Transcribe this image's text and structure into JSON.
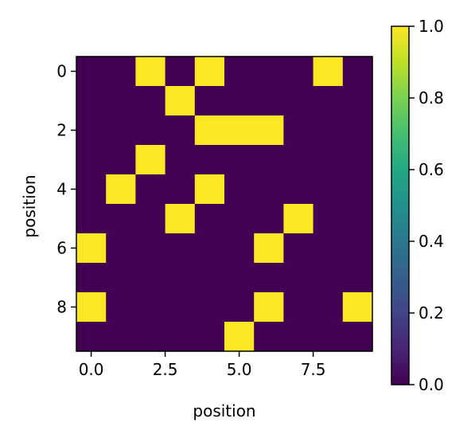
{
  "chart_data": {
    "type": "heatmap",
    "title": "",
    "xlabel": "position",
    "ylabel": "position",
    "x_ticks": [
      "0.0",
      "2.5",
      "5.0",
      "7.5"
    ],
    "y_ticks": [
      "0",
      "2",
      "4",
      "6",
      "8"
    ],
    "colorbar": {
      "ticks": [
        "0.0",
        "0.2",
        "0.4",
        "0.6",
        "0.8",
        "1.0"
      ],
      "range": [
        0.0,
        1.0
      ],
      "colormap": "viridis"
    },
    "colors": {
      "low": "#440154",
      "high": "#fde725"
    },
    "matrix": [
      [
        0,
        0,
        1,
        0,
        1,
        0,
        0,
        0,
        1,
        0
      ],
      [
        0,
        0,
        0,
        1,
        0,
        0,
        0,
        0,
        0,
        0
      ],
      [
        0,
        0,
        0,
        0,
        1,
        1,
        1,
        0,
        0,
        0
      ],
      [
        0,
        0,
        1,
        0,
        0,
        0,
        0,
        0,
        0,
        0
      ],
      [
        0,
        1,
        0,
        0,
        1,
        0,
        0,
        0,
        0,
        0
      ],
      [
        0,
        0,
        0,
        1,
        0,
        0,
        0,
        1,
        0,
        0
      ],
      [
        1,
        0,
        0,
        0,
        0,
        0,
        1,
        0,
        0,
        0
      ],
      [
        0,
        0,
        0,
        0,
        0,
        0,
        0,
        0,
        0,
        0
      ],
      [
        1,
        0,
        0,
        0,
        0,
        0,
        1,
        0,
        0,
        1
      ],
      [
        0,
        0,
        0,
        0,
        0,
        1,
        0,
        0,
        0,
        0
      ]
    ]
  }
}
